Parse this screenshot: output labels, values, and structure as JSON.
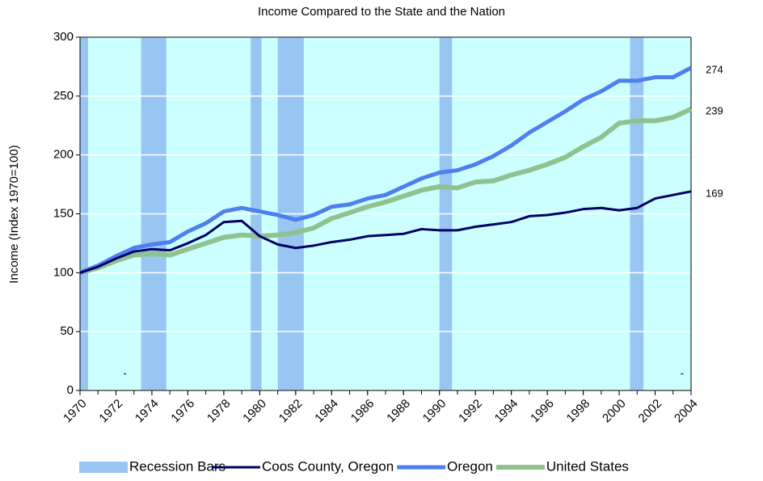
{
  "chart_data": {
    "type": "line",
    "title": "Income Compared to the State and the Nation",
    "y_label": "Income (Index 1970=100)",
    "x": [
      1970,
      1971,
      1972,
      1973,
      1974,
      1975,
      1976,
      1977,
      1978,
      1979,
      1980,
      1981,
      1982,
      1983,
      1984,
      1985,
      1986,
      1987,
      1988,
      1989,
      1990,
      1991,
      1992,
      1993,
      1994,
      1995,
      1996,
      1997,
      1998,
      1999,
      2000,
      2001,
      2002,
      2003,
      2004
    ],
    "xlim": [
      1970,
      2004
    ],
    "xticks": [
      1970,
      1972,
      1974,
      1976,
      1978,
      1980,
      1982,
      1984,
      1986,
      1988,
      1990,
      1992,
      1994,
      1996,
      1998,
      2000,
      2002,
      2004
    ],
    "ylim": [
      0,
      300
    ],
    "yticks": [
      0,
      50,
      100,
      150,
      200,
      250,
      300
    ],
    "grid": true,
    "background": "#ccffff",
    "legend": "bottom",
    "recession_label": "Recession Bars",
    "recession_color": "#99c5f2",
    "recessions": [
      [
        1970,
        1970.45
      ],
      [
        1973.4,
        1974.8
      ],
      [
        1979.5,
        1980.1
      ],
      [
        1981,
        1982.45
      ],
      [
        1990,
        1990.7
      ],
      [
        2000.6,
        2001.35
      ]
    ],
    "series": [
      {
        "name": "Coos County, Oregon",
        "color": "#000066",
        "width": 3,
        "values": [
          100,
          105,
          112,
          118,
          120,
          119,
          125,
          132,
          143,
          144,
          131,
          124,
          121,
          123,
          126,
          128,
          131,
          132,
          133,
          137,
          136,
          136,
          139,
          141,
          143,
          148,
          149,
          151,
          154,
          155,
          153,
          155,
          163,
          166,
          169
        ]
      },
      {
        "name": "Oregon",
        "color": "#4d7ff0",
        "width": 5,
        "values": [
          100,
          106,
          114,
          121,
          124,
          126,
          135,
          142,
          152,
          155,
          152,
          149,
          145,
          149,
          156,
          158,
          163,
          166,
          173,
          180,
          185,
          187,
          192,
          199,
          208,
          219,
          228,
          237,
          247,
          254,
          263,
          263,
          266,
          266,
          274
        ]
      },
      {
        "name": "United States",
        "color": "#8fc28f",
        "width": 6,
        "values": [
          100,
          104,
          110,
          115,
          116,
          115,
          120,
          125,
          130,
          132,
          131,
          132,
          134,
          138,
          146,
          151,
          156,
          160,
          165,
          170,
          173,
          172,
          177,
          178,
          183,
          187,
          192,
          198,
          207,
          215,
          227,
          229,
          229,
          232,
          239
        ]
      }
    ],
    "annotations": [
      {
        "text": "-",
        "x": 1972.5,
        "y": 14
      },
      {
        "text": "-",
        "x": 2003.5,
        "y": 14
      }
    ]
  }
}
